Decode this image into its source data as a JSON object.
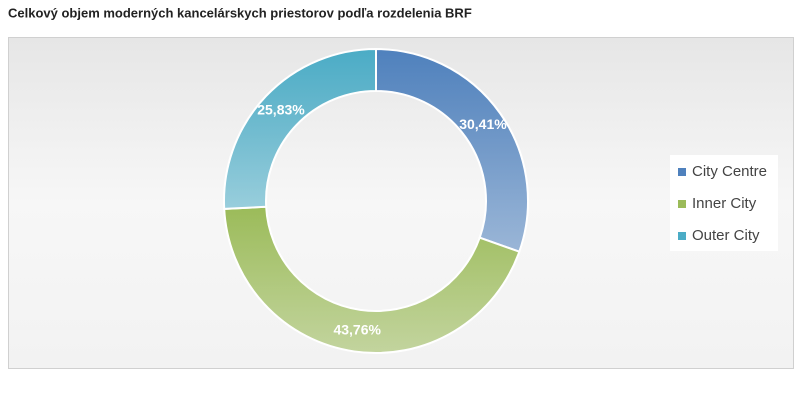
{
  "chart_data": {
    "type": "pie",
    "title": "Celkový objem moderných kancelárskych priestorov podľa rozdelenia BRF",
    "categories": [
      "City Centre",
      "Inner City",
      "Outer City"
    ],
    "values": [
      30.41,
      43.76,
      25.83
    ],
    "value_labels": [
      "30,41%",
      "43,76%",
      "25,83%"
    ],
    "colors": [
      "#4f81bd",
      "#9bbb59",
      "#4bacc6"
    ],
    "legend": "right"
  }
}
